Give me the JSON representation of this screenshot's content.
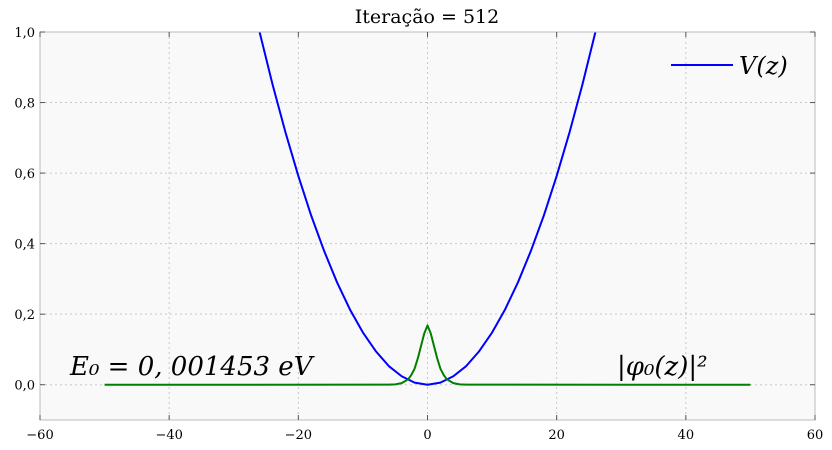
{
  "chart_data": {
    "type": "line",
    "title": "Iteração = 512",
    "xlabel": "",
    "ylabel": "",
    "xlim": [
      -60,
      60
    ],
    "ylim": [
      -0.1,
      1.0
    ],
    "xticks": [
      -60,
      -40,
      -20,
      0,
      20,
      40,
      60
    ],
    "xtick_labels": [
      "−60",
      "−40",
      "−20",
      "0",
      "20",
      "40",
      "60"
    ],
    "yticks": [
      0.0,
      0.2,
      0.4,
      0.6,
      0.8,
      1.0
    ],
    "ytick_labels": [
      "0,0",
      "0,2",
      "0,4",
      "0,6",
      "0,8",
      "1,0"
    ],
    "grid": true,
    "legend_position": "top-right",
    "series": [
      {
        "name": "V(z)",
        "color": "#0000ff",
        "x": [
          -26,
          -24,
          -22,
          -20,
          -18,
          -16,
          -14,
          -12,
          -10,
          -8,
          -6,
          -4,
          -2,
          0,
          2,
          4,
          6,
          8,
          10,
          12,
          14,
          16,
          18,
          20,
          22,
          24,
          26
        ],
        "y": [
          1.0,
          0.852,
          0.716,
          0.592,
          0.479,
          0.379,
          0.29,
          0.213,
          0.148,
          0.095,
          0.053,
          0.024,
          0.006,
          0.0,
          0.006,
          0.024,
          0.053,
          0.095,
          0.148,
          0.213,
          0.29,
          0.379,
          0.479,
          0.592,
          0.716,
          0.852,
          1.0
        ]
      },
      {
        "color": "#008000",
        "x": [
          -50,
          -6,
          -5,
          -4,
          -3,
          -2.5,
          -2,
          -1.5,
          -1,
          -0.5,
          0,
          0.5,
          1,
          1.5,
          2,
          2.5,
          3,
          4,
          5,
          6,
          50
        ],
        "y": [
          0.0,
          0.0002,
          0.0011,
          0.0046,
          0.0154,
          0.0277,
          0.0454,
          0.0748,
          0.11,
          0.1455,
          0.168,
          0.1455,
          0.11,
          0.0748,
          0.0454,
          0.0277,
          0.0154,
          0.0046,
          0.0011,
          0.0002,
          0.0
        ]
      }
    ],
    "annotations": [
      {
        "text": "E₀ = 0, 001453 eV",
        "x": -55,
        "y": 0.03
      },
      {
        "text": "|φ₀(z)|²",
        "x": 29,
        "y": 0.03
      }
    ]
  }
}
